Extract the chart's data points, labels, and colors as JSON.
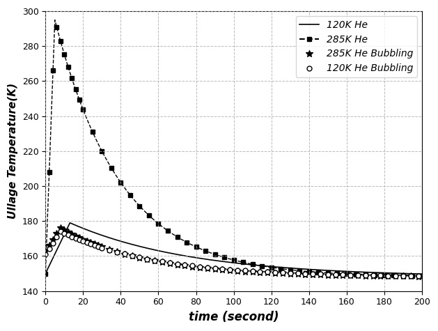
{
  "title": "",
  "xlabel": "time (second)",
  "ylabel": "Ullage Temperature(K)",
  "xlim": [
    0,
    200
  ],
  "ylim": [
    140,
    300
  ],
  "yticks": [
    140,
    160,
    180,
    200,
    220,
    240,
    260,
    280,
    300
  ],
  "xticks": [
    0,
    20,
    40,
    60,
    80,
    100,
    120,
    140,
    160,
    180,
    200
  ],
  "legend": [
    "120K He",
    "285K He",
    "285K He Bubbling",
    "120K He Bubbling"
  ],
  "bg_color": "#ffffff",
  "line_color": "#000000",
  "grid_color": "#aaaaaa"
}
